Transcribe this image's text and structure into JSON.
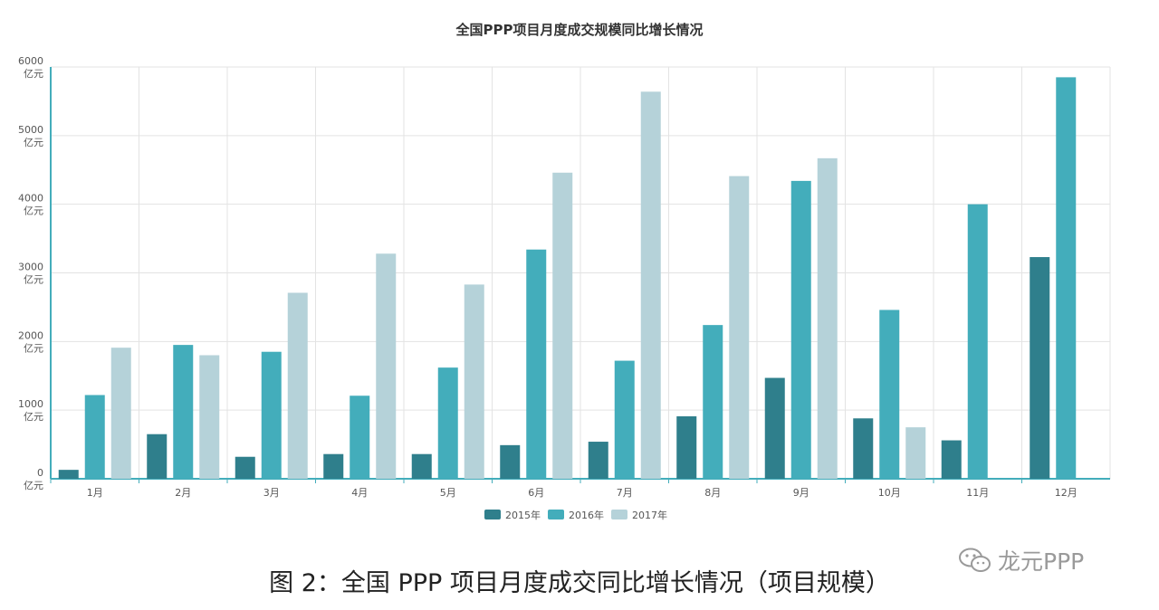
{
  "chart_data": {
    "type": "bar",
    "title": "全国PPP项目月度成交规模同比增长情况",
    "categories": [
      "1月",
      "2月",
      "3月",
      "4月",
      "5月",
      "6月",
      "7月",
      "8月",
      "9月",
      "10月",
      "11月",
      "12月"
    ],
    "series": [
      {
        "name": "2015年",
        "color": "#2f7f8c",
        "values": [
          130,
          650,
          320,
          360,
          360,
          490,
          540,
          910,
          1470,
          880,
          560,
          3230
        ]
      },
      {
        "name": "2016年",
        "color": "#43adbb",
        "values": [
          1220,
          1950,
          1850,
          1210,
          1620,
          3340,
          1720,
          2240,
          4340,
          2460,
          4000,
          5850
        ]
      },
      {
        "name": "2017年",
        "color": "#b5d2d9",
        "values": [
          1910,
          1800,
          2710,
          3280,
          2830,
          4460,
          5640,
          4410,
          4670,
          750,
          null,
          null
        ]
      }
    ],
    "ylim": [
      0,
      6000
    ],
    "y_ticks": [
      {
        "value": 0,
        "num": "0",
        "unit": "亿元"
      },
      {
        "value": 1000,
        "num": "1000",
        "unit": "亿元"
      },
      {
        "value": 2000,
        "num": "2000",
        "unit": "亿元"
      },
      {
        "value": 3000,
        "num": "3000",
        "unit": "亿元"
      },
      {
        "value": 4000,
        "num": "4000",
        "unit": "亿元"
      },
      {
        "value": 5000,
        "num": "5000",
        "unit": "亿元"
      },
      {
        "value": 6000,
        "num": "6000",
        "unit": "亿元"
      }
    ],
    "grid": true,
    "legend": "bottom-center"
  },
  "caption": "图 2：全国 PPP 项目月度成交同比增长情况（项目规模）",
  "brand": {
    "label": "龙元PPP",
    "icon": "wechat-icon"
  }
}
